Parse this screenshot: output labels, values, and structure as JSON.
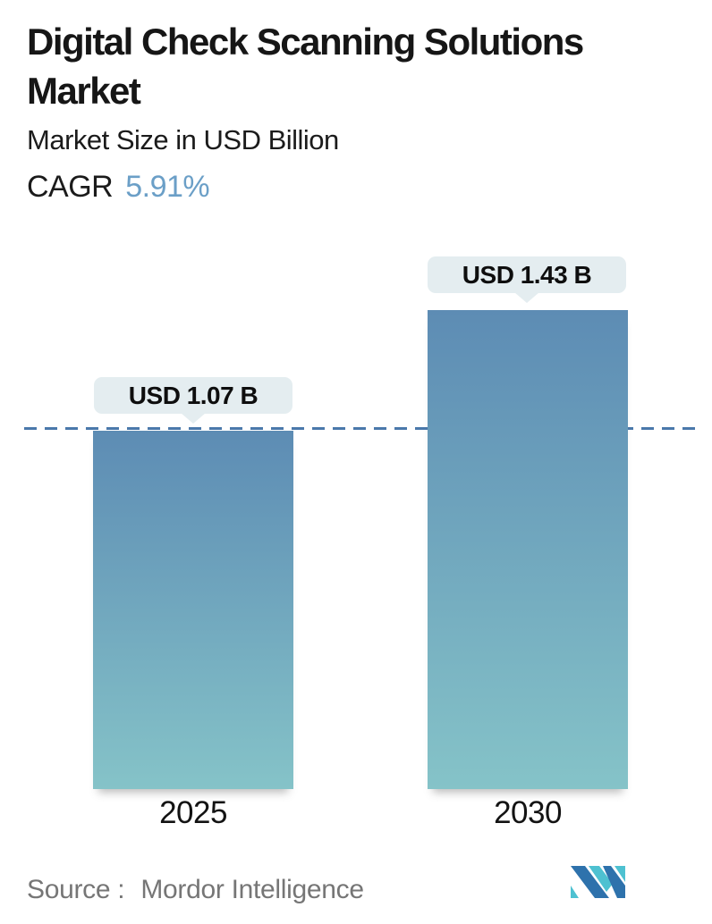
{
  "header": {
    "title": "Digital Check Scanning Solutions Market",
    "subtitle": "Market Size in USD Billion",
    "cagr_label": "CAGR",
    "cagr_value": "5.91%"
  },
  "chart_data": {
    "type": "bar",
    "title": "Digital Check Scanning Solutions Market",
    "ylabel": "Market Size in USD Billion",
    "categories": [
      "2025",
      "2030"
    ],
    "values": [
      1.07,
      1.43
    ],
    "value_labels": [
      "USD 1.07 B",
      "USD 1.43 B"
    ],
    "unit": "USD Billion",
    "cagr_percent": 5.91,
    "dashed_reference_line": 1.07,
    "ylim": [
      0,
      1.5
    ],
    "grid": "off",
    "legend": "none",
    "bar_gradient_top": "#5d8cb4",
    "bar_gradient_bottom": "#85c3c8",
    "dash_color": "#4a78ab",
    "label_bubble_bg": "#e4edf0"
  },
  "footer": {
    "source_label": "Source :",
    "source_value": "Mordor Intelligence"
  },
  "colors": {
    "cagr_accent": "#6b9fc7",
    "title_text": "#161616",
    "source_text": "#767676",
    "logo_blue": "#2e72ac",
    "logo_teal": "#4ec1d1"
  }
}
